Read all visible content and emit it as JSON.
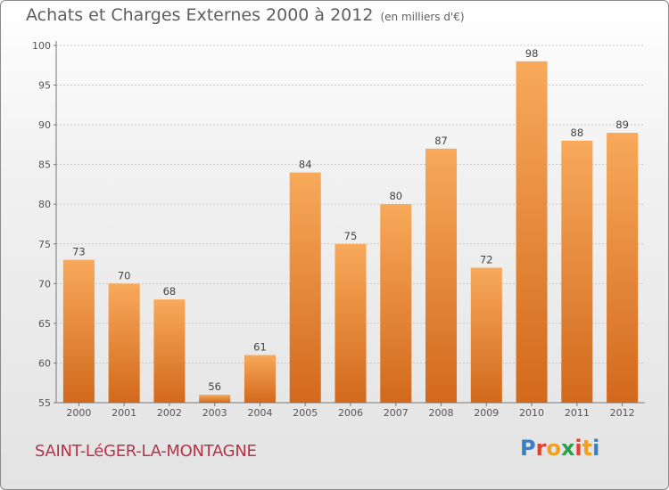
{
  "title": "Achats et Charges Externes 2000 à 2012",
  "units": "(en milliers d'€)",
  "commune": "SAINT-LéGER-LA-MONTAGNE",
  "logo": {
    "text": "Proxiti",
    "colors": [
      "#3a7fc4",
      "#e0432e",
      "#f0a020",
      "#2aa04a",
      "#e0432e",
      "#f0a020",
      "#3a7fc4"
    ]
  },
  "chart_data": {
    "type": "bar",
    "title": "Achats et Charges Externes 2000 à 2012",
    "xlabel": "",
    "ylabel": "",
    "categories": [
      "2000",
      "2001",
      "2002",
      "2003",
      "2004",
      "2005",
      "2006",
      "2007",
      "2008",
      "2009",
      "2010",
      "2011",
      "2012"
    ],
    "values": [
      73,
      70,
      68,
      56,
      61,
      84,
      75,
      80,
      87,
      72,
      98,
      88,
      89
    ],
    "ylim": [
      55,
      100
    ],
    "yticks": [
      55,
      60,
      65,
      70,
      75,
      80,
      85,
      90,
      95,
      100
    ],
    "grid": true,
    "colors": {
      "bar_top": "#f8a95a",
      "bar_bottom": "#d2691c",
      "grid": "#c8c8c8"
    }
  }
}
